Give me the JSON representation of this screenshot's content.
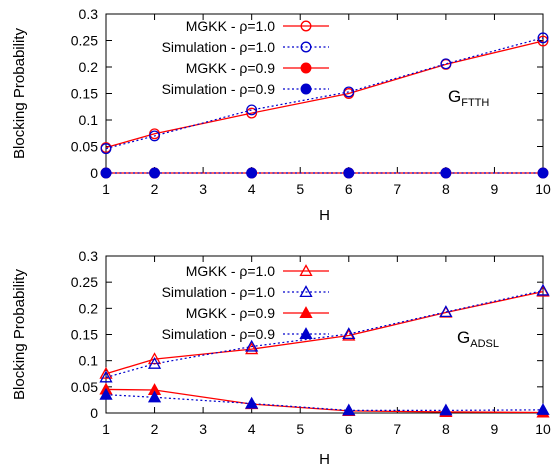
{
  "colors": {
    "mgkk": "#ff0000",
    "sim": "#0000cc",
    "axis": "#000000"
  },
  "chart_data": [
    {
      "type": "line",
      "annotation": {
        "main": "G",
        "sub": "FTTH"
      },
      "xlabel": "H",
      "ylabel": "Blocking Probability",
      "xlim": [
        1,
        10
      ],
      "ylim": [
        0,
        0.3
      ],
      "xticks": [
        "1",
        "2",
        "3",
        "4",
        "5",
        "6",
        "7",
        "8",
        "9",
        "10"
      ],
      "yticks": [
        "0",
        "0.05",
        "0.1",
        "0.15",
        "0.2",
        "0.25",
        "0.3"
      ],
      "grid": false,
      "legend_position": "top-left",
      "x": [
        1,
        2,
        4,
        6,
        8,
        10
      ],
      "series": [
        {
          "name": "MGKK - ρ=1.0",
          "marker": "circle-open",
          "line": "solid",
          "color": "#ff0000",
          "values": [
            0.048,
            0.074,
            0.113,
            0.15,
            0.205,
            0.249
          ]
        },
        {
          "name": "Simulation - ρ=1.0",
          "marker": "circle-open",
          "line": "dotted",
          "color": "#0000cc",
          "values": [
            0.046,
            0.07,
            0.119,
            0.153,
            0.206,
            0.255
          ]
        },
        {
          "name": "MGKK - ρ=0.9",
          "marker": "circle-filled",
          "line": "solid",
          "color": "#ff0000",
          "values": [
            0.0,
            0.0,
            0.0,
            0.0,
            0.0,
            0.0
          ]
        },
        {
          "name": "Simulation - ρ=0.9",
          "marker": "circle-filled",
          "line": "dotted",
          "color": "#0000cc",
          "values": [
            0.0,
            0.0,
            0.0,
            0.0,
            0.0,
            0.0
          ]
        }
      ]
    },
    {
      "type": "line",
      "annotation": {
        "main": "G",
        "sub": "ADSL"
      },
      "xlabel": "H",
      "ylabel": "Blocking Probability",
      "xlim": [
        1,
        10
      ],
      "ylim": [
        0,
        0.3
      ],
      "xticks": [
        "1",
        "2",
        "3",
        "4",
        "5",
        "6",
        "7",
        "8",
        "9",
        "10"
      ],
      "yticks": [
        "0",
        "0.05",
        "0.1",
        "0.15",
        "0.2",
        "0.25",
        "0.3"
      ],
      "grid": false,
      "legend_position": "top-left",
      "x": [
        1,
        2,
        4,
        6,
        8,
        10
      ],
      "series": [
        {
          "name": "MGKK - ρ=1.0",
          "marker": "triangle-open",
          "line": "solid",
          "color": "#ff0000",
          "values": [
            0.075,
            0.103,
            0.122,
            0.148,
            0.192,
            0.232
          ]
        },
        {
          "name": "Simulation - ρ=1.0",
          "marker": "triangle-open",
          "line": "dotted",
          "color": "#0000cc",
          "values": [
            0.068,
            0.094,
            0.127,
            0.151,
            0.193,
            0.234
          ]
        },
        {
          "name": "MGKK - ρ=0.9",
          "marker": "triangle-filled",
          "line": "solid",
          "color": "#ff0000",
          "values": [
            0.045,
            0.044,
            0.017,
            0.004,
            0.002,
            0.001
          ]
        },
        {
          "name": "Simulation - ρ=0.9",
          "marker": "triangle-filled",
          "line": "dotted",
          "color": "#0000cc",
          "values": [
            0.035,
            0.03,
            0.018,
            0.005,
            0.005,
            0.006
          ]
        }
      ]
    }
  ]
}
